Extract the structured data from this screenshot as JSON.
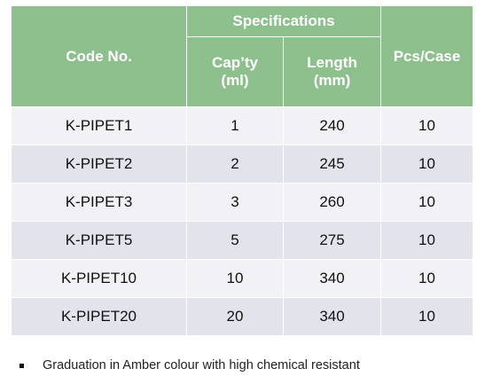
{
  "table": {
    "headers": {
      "code": "Code No.",
      "specifications": "Specifications",
      "capacity_line1": "Cap’ty",
      "capacity_line2": "(ml)",
      "length_line1": "Length",
      "length_line2": "(mm)",
      "pcs": "Pcs/Case"
    },
    "rows": [
      {
        "code": "K-PIPET1",
        "capacity": "1",
        "length": "240",
        "pcs": "10"
      },
      {
        "code": "K-PIPET2",
        "capacity": "2",
        "length": "245",
        "pcs": "10"
      },
      {
        "code": "K-PIPET3",
        "capacity": "3",
        "length": "260",
        "pcs": "10"
      },
      {
        "code": "K-PIPET5",
        "capacity": "5",
        "length": "275",
        "pcs": "10"
      },
      {
        "code": "K-PIPET10",
        "capacity": "10",
        "length": "340",
        "pcs": "10"
      },
      {
        "code": "K-PIPET20",
        "capacity": "20",
        "length": "340",
        "pcs": "10"
      }
    ]
  },
  "notes": [
    "Graduation in Amber colour with high chemical resistant"
  ],
  "colors": {
    "header_bg": "#8dc08d",
    "row_light": "#f1f1f6",
    "row_dark": "#e3e3ec"
  }
}
